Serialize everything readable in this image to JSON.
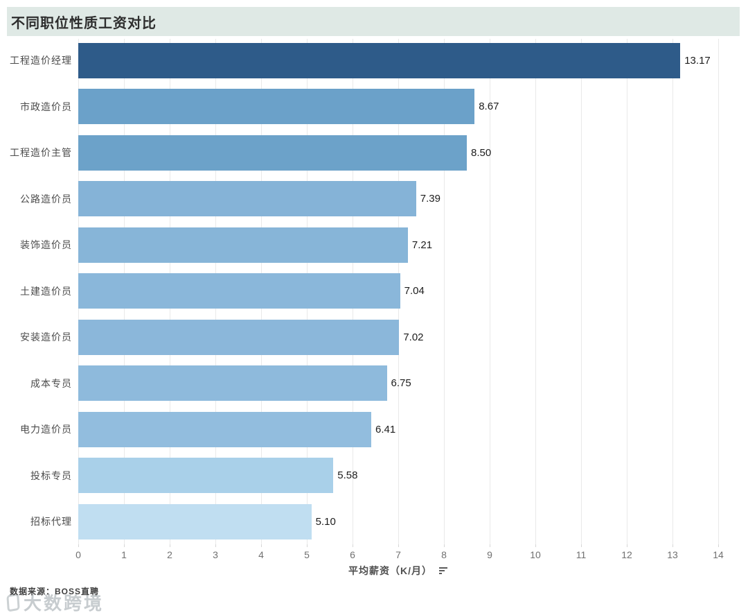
{
  "header": {
    "title": "不同职位性质工资对比"
  },
  "chart_data": {
    "type": "bar",
    "orientation": "horizontal",
    "title": "不同职位性质工资对比",
    "xlabel": "平均薪资（K/月）",
    "xlim": [
      0,
      14
    ],
    "x_ticks": [
      0,
      1,
      2,
      3,
      4,
      5,
      6,
      7,
      8,
      9,
      10,
      11,
      12,
      13,
      14
    ],
    "grid": true,
    "sort_order": "descending",
    "legend": "none",
    "categories": [
      "工程造价经理",
      "市政造价员",
      "工程造价主管",
      "公路造价员",
      "装饰造价员",
      "土建造价员",
      "安装造价员",
      "成本专员",
      "电力造价员",
      "投标专员",
      "招标代理"
    ],
    "values": [
      13.17,
      8.67,
      8.5,
      7.39,
      7.21,
      7.04,
      7.02,
      6.75,
      6.41,
      5.58,
      5.1
    ],
    "value_labels": [
      "13.17",
      "8.67",
      "8.50",
      "7.39",
      "7.21",
      "7.04",
      "7.02",
      "6.75",
      "6.41",
      "5.58",
      "5.10"
    ],
    "bar_colors": [
      "#2e5b89",
      "#6ba1c9",
      "#6ca2c9",
      "#85b3d7",
      "#87b5d8",
      "#8ab7da",
      "#8bb7da",
      "#8ebadc",
      "#92bdde",
      "#a9d0e9",
      "#c0def1"
    ]
  },
  "footer": {
    "source_text": "数据来源：BOSS直聘",
    "watermark_text": "大数跨境"
  },
  "colors": {
    "title_banner_bg": "#dfe9e5",
    "grid_line": "#e9e9e9",
    "bar_dark": "#2e5b89",
    "bar_light": "#c0def1",
    "tick_label": "#707070",
    "axis_title": "#4f4f4f",
    "category_label": "#4b4b4b",
    "value_label": "#1c1c1c"
  }
}
